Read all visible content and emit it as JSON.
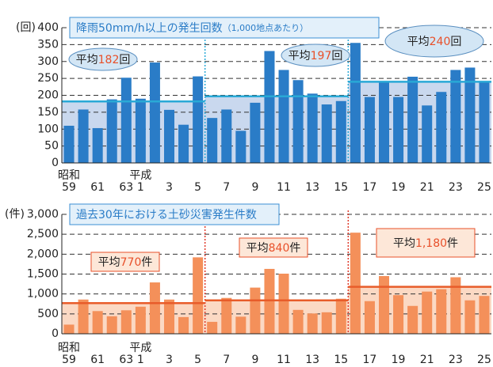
{
  "chart_data": [
    {
      "type": "bar",
      "title": "降雨50mm/h以上の発生回数",
      "subtitle": "（1,000地点あたり）",
      "y_unit": "(回)",
      "categories": [
        "59",
        null,
        "61",
        null,
        "63",
        "1",
        null,
        "3",
        null,
        "5",
        null,
        "7",
        null,
        "9",
        null,
        "11",
        null,
        "13",
        null,
        "15",
        null,
        "17",
        null,
        "19",
        null,
        "21",
        null,
        "23",
        null,
        "25"
      ],
      "annotations": [
        {
          "text": "昭和",
          "category": "59"
        },
        {
          "text": "平成",
          "category": "1"
        }
      ],
      "values": [
        110,
        158,
        103,
        188,
        252,
        190,
        297,
        157,
        113,
        256,
        133,
        158,
        95,
        178,
        331,
        275,
        245,
        205,
        173,
        183,
        355,
        195,
        238,
        195,
        255,
        170,
        210,
        275,
        282,
        238
      ],
      "color": "#2a7cc7",
      "averages": [
        {
          "prefix": "平均",
          "value": 182,
          "unit": "回"
        },
        {
          "prefix": "平均",
          "value": 197,
          "unit": "回"
        },
        {
          "prefix": "平均",
          "value": 240,
          "unit": "回"
        }
      ],
      "average_color": "#29a9d6",
      "ylim": [
        0,
        400
      ],
      "yticks": [
        0,
        50,
        100,
        150,
        200,
        250,
        300,
        350,
        400
      ],
      "grid": true
    },
    {
      "type": "bar",
      "title": "過去30年における土砂災害発生件数",
      "y_unit": "(件)",
      "categories": [
        "59",
        null,
        "61",
        null,
        "63",
        "1",
        null,
        "3",
        null,
        "5",
        null,
        "7",
        null,
        "9",
        null,
        "11",
        null,
        "13",
        null,
        "15",
        null,
        "17",
        null,
        "19",
        null,
        "21",
        null,
        "23",
        null,
        "25"
      ],
      "annotations": [
        {
          "text": "昭和",
          "category": "59"
        },
        {
          "text": "平成",
          "category": "1"
        }
      ],
      "values": [
        230,
        860,
        570,
        440,
        590,
        680,
        1290,
        860,
        420,
        1920,
        300,
        900,
        430,
        1160,
        1630,
        1510,
        600,
        510,
        540,
        880,
        2540,
        820,
        1450,
        970,
        700,
        1060,
        1120,
        1420,
        840,
        950
      ],
      "color": "#f4905a",
      "averages": [
        {
          "prefix": "平均",
          "value": 770,
          "unit": "件"
        },
        {
          "prefix": "平均",
          "value": 840,
          "unit": "件"
        },
        {
          "prefix": "平均",
          "value": 1180,
          "value_label": "1,180",
          "unit": "件"
        }
      ],
      "average_color": "#e85c2a",
      "ylim": [
        0,
        3000
      ],
      "yticks": [
        0,
        500,
        {
          "value": 1000,
          "label": "1,000"
        },
        {
          "value": 1500,
          "label": "1,500"
        },
        {
          "value": 2000,
          "label": "2,000"
        },
        {
          "value": 2500,
          "label": "2,500"
        },
        {
          "value": 3000,
          "label": "3,000"
        }
      ],
      "grid": true
    }
  ]
}
